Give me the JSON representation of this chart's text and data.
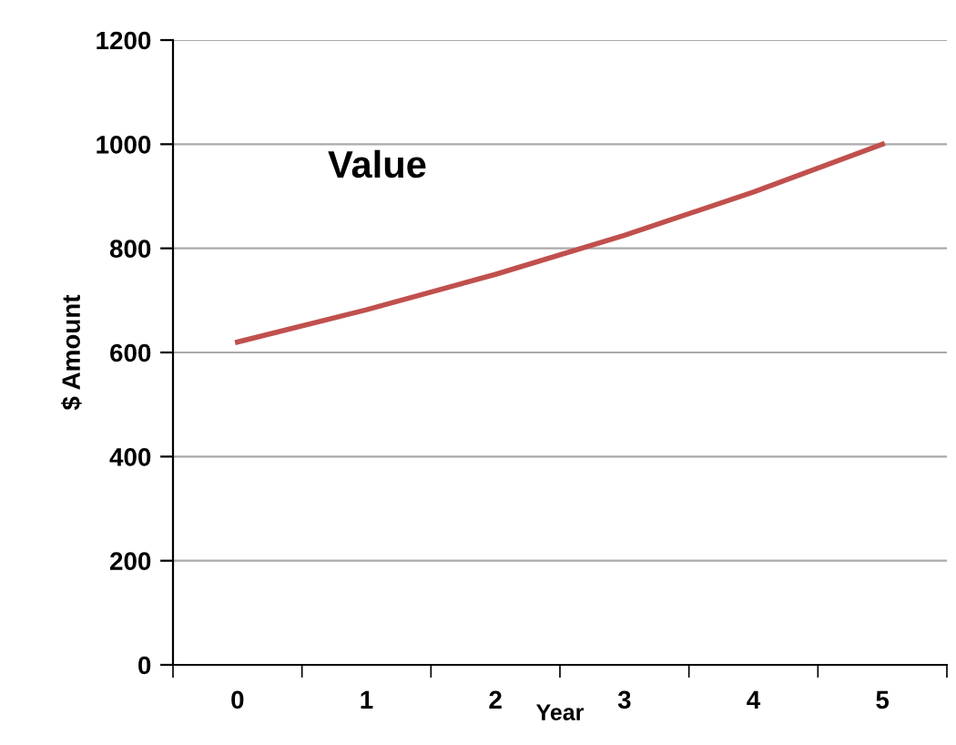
{
  "chart_data": {
    "type": "line",
    "xlabel": "Year",
    "ylabel": "$ Amount",
    "categories": [
      "0",
      "1",
      "2",
      "3",
      "4",
      "5"
    ],
    "series": [
      {
        "name": "Value",
        "color": "#c0504d",
        "values": [
          620,
          682,
          750,
          825,
          908,
          1000
        ]
      }
    ],
    "ylim": [
      0,
      1200
    ],
    "yticks": [
      0,
      200,
      400,
      600,
      800,
      1000,
      1200
    ],
    "grid": "y",
    "marker": "none",
    "line_style": "solid"
  }
}
